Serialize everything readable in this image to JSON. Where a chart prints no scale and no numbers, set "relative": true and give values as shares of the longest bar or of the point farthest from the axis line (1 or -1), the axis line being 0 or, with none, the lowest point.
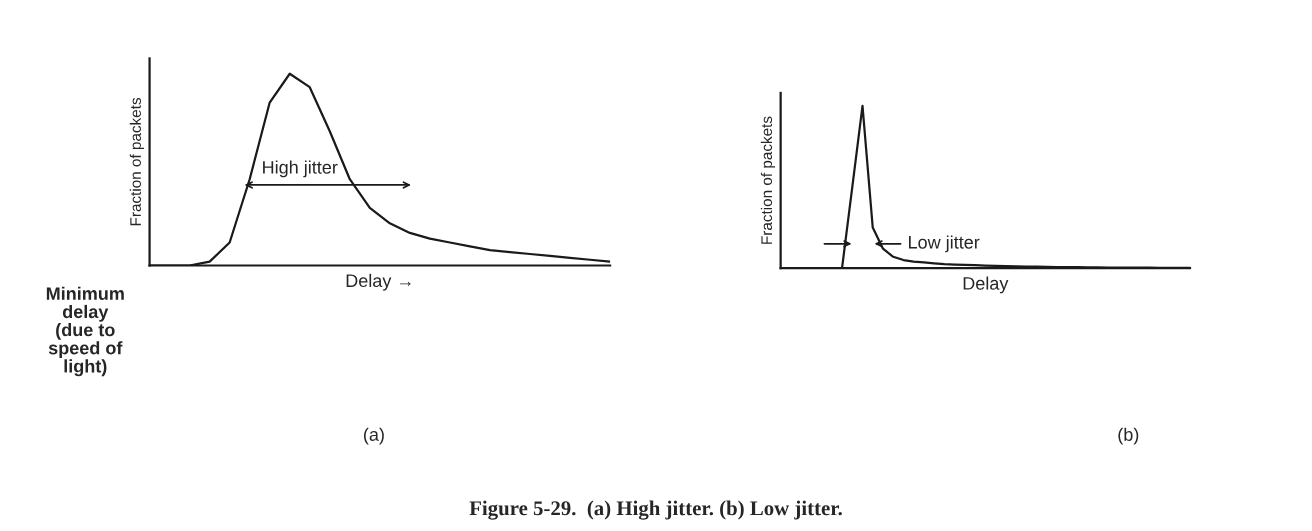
{
  "chart_data": [
    {
      "type": "line",
      "relative": true,
      "tick_labels": false,
      "xlabel": "Delay →",
      "ylabel": "Fraction of packets",
      "categories": [
        null,
        null,
        null,
        null,
        null,
        null,
        null,
        null,
        null,
        null,
        null,
        null,
        null,
        null,
        null,
        null,
        null,
        null,
        null,
        null,
        null,
        null,
        null,
        null
      ],
      "series": [
        {
          "color": "#1a1a1a",
          "values": [
            0,
            0,
            0,
            0.02,
            0.12,
            0.45,
            0.85,
            1.0,
            0.93,
            0.7,
            0.45,
            0.3,
            0.22,
            0.17,
            0.14,
            0.12,
            0.1,
            0.08,
            0.07,
            0.06,
            0.05,
            0.04,
            0.03,
            0.02
          ]
        }
      ],
      "annotations": [
        "High jitter",
        "Minimum\ndelay\n(due to\nspeed of\nlight)",
        "(a)",
        "Figure 5-29.  (a) High jitter. (b) Low jitter."
      ]
    },
    {
      "type": "line",
      "relative": true,
      "tick_labels": false,
      "xlabel": "Delay",
      "ylabel": "Fraction of packets",
      "categories": [
        null,
        null,
        null,
        null,
        null,
        null,
        null,
        null,
        null,
        null,
        null,
        null,
        null,
        null,
        null,
        null,
        null,
        null,
        null,
        null,
        null,
        null,
        null,
        null,
        null,
        null,
        null,
        null,
        null,
        null,
        null,
        null,
        null,
        null,
        null,
        null,
        null,
        null,
        null,
        null,
        null
      ],
      "series": [
        {
          "color": "#1a1a1a",
          "values": [
            0,
            0,
            0,
            0,
            0,
            0,
            0,
            0.5,
            1.0,
            0.25,
            0.12,
            0.07,
            0.05,
            0.04,
            0.035,
            0.03,
            0.025,
            0.022,
            0.02,
            0.018,
            0.016,
            0.014,
            0.012,
            0.011,
            0.01,
            0.009,
            0.008,
            0.007,
            0.006,
            0.006,
            0.005,
            0.005,
            0.004,
            0.004,
            0.003,
            0.003,
            0.003,
            0.002,
            0.002,
            0.002,
            0.002
          ]
        }
      ],
      "annotations": [
        "Low jitter",
        "(b)"
      ]
    }
  ]
}
